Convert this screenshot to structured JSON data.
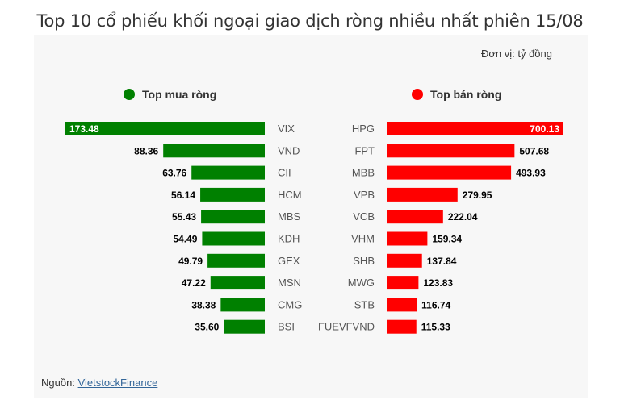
{
  "header": {
    "title": "Top 10 cổ phiếu khối ngoại giao dịch ròng nhiều nhất phiên 15/08"
  },
  "unit_note": "Đơn vị: tỷ đồng",
  "source": {
    "label": "Nguồn: ",
    "link_text": "VietstockFinance"
  },
  "colors": {
    "buy": "#008000",
    "sell": "#ff0000"
  },
  "chart_data": [
    {
      "type": "bar",
      "orientation": "horizontal",
      "legend": "Top mua ròng",
      "categories": [
        "VIX",
        "VND",
        "CII",
        "HCM",
        "MBS",
        "KDH",
        "GEX",
        "MSN",
        "CMG",
        "BSI"
      ],
      "values": [
        173.48,
        88.36,
        63.76,
        56.14,
        55.43,
        54.49,
        49.79,
        47.22,
        38.38,
        35.6
      ],
      "labels": [
        "173.48",
        "88.36",
        "63.76",
        "56.14",
        "55.43",
        "54.49",
        "49.79",
        "47.22",
        "38.38",
        "35.60"
      ]
    },
    {
      "type": "bar",
      "orientation": "horizontal",
      "legend": "Top bán ròng",
      "categories": [
        "HPG",
        "FPT",
        "MBB",
        "VPB",
        "VCB",
        "VHM",
        "SHB",
        "MWG",
        "STB",
        "FUEVFVND"
      ],
      "values": [
        700.13,
        507.68,
        493.93,
        279.95,
        222.04,
        159.34,
        137.84,
        123.83,
        116.74,
        115.33
      ],
      "labels": [
        "700.13",
        "507.68",
        "493.93",
        "279.95",
        "222.04",
        "159.34",
        "137.84",
        "123.83",
        "116.74",
        "115.33"
      ]
    }
  ]
}
